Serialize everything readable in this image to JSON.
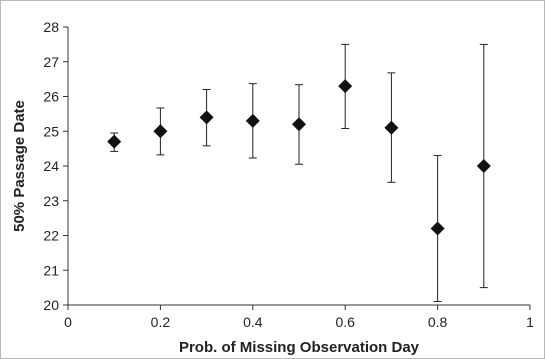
{
  "chart_data": {
    "type": "scatter",
    "title": "",
    "xlabel": "Prob. of Missing Observation Day",
    "ylabel": "50% Passage Date",
    "xlim": [
      0,
      1
    ],
    "ylim": [
      20,
      28
    ],
    "x_ticks": [
      "0",
      "0.2",
      "0.4",
      "0.6",
      "0.8",
      "1"
    ],
    "y_ticks": [
      "20",
      "21",
      "22",
      "23",
      "24",
      "25",
      "26",
      "27",
      "28"
    ],
    "grid": false,
    "legend": "none",
    "marker": "diamond",
    "marker_color": "#111111",
    "series": [
      {
        "x": [
          0.1,
          0.2,
          0.3,
          0.4,
          0.5,
          0.6,
          0.7,
          0.8,
          0.9
        ],
        "y": [
          24.7,
          25.0,
          25.4,
          25.3,
          25.2,
          26.3,
          25.1,
          22.2,
          24.0
        ],
        "y_err_low": [
          24.42,
          24.32,
          24.58,
          24.23,
          24.05,
          25.08,
          23.53,
          20.1,
          20.5
        ],
        "y_err_high": [
          24.95,
          25.67,
          26.2,
          26.37,
          26.34,
          27.5,
          26.68,
          24.3,
          27.5
        ]
      }
    ]
  }
}
